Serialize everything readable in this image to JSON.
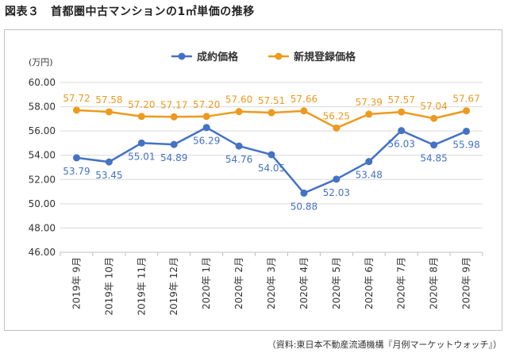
{
  "figure": {
    "title": "図表３　首都圏中古マンションの1㎡単価の推移",
    "source": "（資料:東日本不動産流通機構『月例マーケットウォッチ』）"
  },
  "chart_data": {
    "type": "line",
    "unit_label": "(万円)",
    "categories": [
      "2019年 9月",
      "2019年 10月",
      "2019年 11月",
      "2019年 12月",
      "2020年 1月",
      "2020年 2月",
      "2020年 3月",
      "2020年 4月",
      "2020年 5月",
      "2020年 6月",
      "2020年 7月",
      "2020年 8月",
      "2020年 9月"
    ],
    "ylim": [
      46,
      60
    ],
    "yticks": [
      "46.00",
      "48.00",
      "50.00",
      "52.00",
      "54.00",
      "56.00",
      "58.00",
      "60.00"
    ],
    "grid": true,
    "legend_position": "top-center",
    "series": [
      {
        "name": "成約価格",
        "color": "#4472c4",
        "values": [
          53.79,
          53.45,
          55.01,
          54.89,
          56.29,
          54.76,
          54.05,
          50.88,
          52.03,
          53.48,
          56.03,
          54.85,
          55.98
        ],
        "labels": [
          "53.79",
          "53.45",
          "55.01",
          "54.89",
          "56.29",
          "54.76",
          "54.05",
          "50.88",
          "52.03",
          "53.48",
          "56.03",
          "54.85",
          "55.98"
        ]
      },
      {
        "name": "新規登録価格",
        "color": "#ed9a1e",
        "values": [
          57.72,
          57.58,
          57.2,
          57.17,
          57.2,
          57.6,
          57.51,
          57.66,
          56.25,
          57.39,
          57.57,
          57.04,
          57.67
        ],
        "labels": [
          "57.72",
          "57.58",
          "57.20",
          "57.17",
          "57.20",
          "57.60",
          "57.51",
          "57.66",
          "56.25",
          "57.39",
          "57.57",
          "57.04",
          "57.67"
        ]
      }
    ]
  }
}
